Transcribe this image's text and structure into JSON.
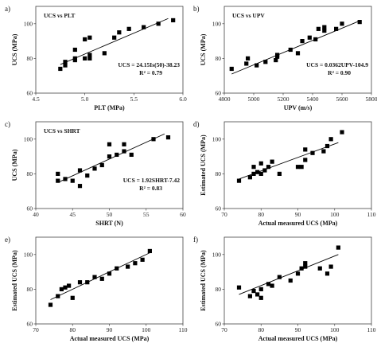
{
  "chart_data": [
    {
      "id": "a",
      "type": "scatter",
      "letter": "a)",
      "title": "UCS vs PLT",
      "equation": "UCS = 24.15Is(50)-38.23",
      "r2": "R² = 0.79",
      "xlabel": "PLT (MPa)",
      "ylabel": "UCS (MPa)",
      "xlim": [
        4.5,
        6.0
      ],
      "ylim": [
        60,
        110
      ],
      "xticks": [
        4.5,
        5.0,
        5.5,
        6.0
      ],
      "xtick_labels": [
        "4.5",
        "5.0",
        "5.5",
        "6.0"
      ],
      "yticks": [
        60,
        80,
        100
      ],
      "ytick_labels": [
        "60",
        "80",
        "100"
      ],
      "x": [
        4.75,
        4.8,
        4.8,
        4.9,
        4.9,
        4.9,
        5.0,
        5.0,
        5.05,
        5.05,
        5.05,
        5.2,
        5.3,
        5.35,
        5.45,
        5.6,
        5.75,
        5.9
      ],
      "y": [
        74,
        76,
        78,
        79,
        80,
        85,
        80,
        91,
        80,
        82,
        92,
        83,
        92,
        95,
        97,
        98,
        100,
        102
      ],
      "fit": [
        [
          4.75,
          76.5
        ],
        [
          5.85,
          103
        ]
      ]
    },
    {
      "id": "b",
      "type": "scatter",
      "letter": "b)",
      "title": "UCS vs UPV",
      "equation": "UCS = 0.0362UPV-104.9",
      "r2": "R² = 0.90",
      "xlabel": "UPV (m/s)",
      "ylabel": "UCS (MPa)",
      "xlim": [
        4800,
        5800
      ],
      "ylim": [
        60,
        110
      ],
      "xticks": [
        4800,
        5000,
        5200,
        5400,
        5600,
        5800
      ],
      "xtick_labels": [
        "4800",
        "5000",
        "5200",
        "5400",
        "5600",
        "5800"
      ],
      "yticks": [
        60,
        80,
        100
      ],
      "ytick_labels": [
        "60",
        "80",
        "100"
      ],
      "x": [
        4850,
        4950,
        4960,
        5020,
        5080,
        5150,
        5160,
        5160,
        5250,
        5300,
        5330,
        5380,
        5420,
        5440,
        5480,
        5480,
        5560,
        5600,
        5720
      ],
      "y": [
        74,
        77,
        80,
        76,
        78,
        79,
        81,
        82,
        85,
        83,
        90,
        92,
        91,
        97,
        96,
        98,
        97,
        100,
        101
      ],
      "fit": [
        [
          4850,
          71
        ],
        [
          5730,
          102
        ]
      ]
    },
    {
      "id": "c",
      "type": "scatter",
      "letter": "c)",
      "title": "UCS vs SHRT",
      "equation": "UCS = 1.92SHRT-7.42",
      "r2": "R² = 0.83",
      "xlabel": "SHRT (N)",
      "ylabel": "UCS (MPa)",
      "xlim": [
        40,
        60
      ],
      "ylim": [
        60,
        110
      ],
      "xticks": [
        40,
        45,
        50,
        55,
        60
      ],
      "xtick_labels": [
        "40",
        "45",
        "50",
        "55",
        "60"
      ],
      "yticks": [
        60,
        80,
        100
      ],
      "ytick_labels": [
        "60",
        "80",
        "100"
      ],
      "x": [
        43,
        43,
        44,
        45,
        46,
        46,
        47,
        48,
        49,
        50,
        50,
        51,
        52,
        52,
        53,
        56,
        58
      ],
      "y": [
        76,
        80,
        77,
        76,
        73,
        82,
        79,
        83,
        85,
        90,
        97,
        91,
        93,
        97,
        91,
        100,
        101
      ],
      "fit": [
        [
          43,
          75
        ],
        [
          57.5,
          103
        ]
      ]
    },
    {
      "id": "d",
      "type": "scatter",
      "letter": "d)",
      "title": "",
      "equation": "",
      "r2": "",
      "xlabel": "Actual measured UCS (MPa)",
      "ylabel": "Estimated UCS (MPa)",
      "xlim": [
        70,
        110
      ],
      "ylim": [
        60,
        110
      ],
      "xticks": [
        70,
        80,
        90,
        100,
        110
      ],
      "xtick_labels": [
        "70",
        "80",
        "90",
        "100",
        "110"
      ],
      "yticks": [
        60,
        80,
        100
      ],
      "ytick_labels": [
        "60",
        "80",
        "100"
      ],
      "x": [
        74,
        77,
        78,
        78,
        79,
        80,
        80,
        81,
        82,
        83,
        85,
        90,
        91,
        92,
        92,
        94,
        97,
        98,
        99,
        102
      ],
      "y": [
        76,
        78,
        80,
        84,
        81,
        86,
        80,
        82,
        84,
        87,
        80,
        84,
        84,
        94,
        88,
        92,
        93,
        96,
        100,
        104
      ],
      "fit": [
        [
          74,
          77
        ],
        [
          101,
          98
        ]
      ]
    },
    {
      "id": "e",
      "type": "scatter",
      "letter": "e)",
      "title": "",
      "equation": "",
      "r2": "",
      "xlabel": "Actual measured UCS (MPa)",
      "ylabel": "Estimated UCS (MPa)",
      "xlim": [
        70,
        110
      ],
      "ylim": [
        60,
        110
      ],
      "xticks": [
        70,
        80,
        90,
        100,
        110
      ],
      "xtick_labels": [
        "70",
        "80",
        "90",
        "100",
        "110"
      ],
      "yticks": [
        60,
        80,
        100
      ],
      "ytick_labels": [
        "60",
        "80",
        "100"
      ],
      "x": [
        74,
        76,
        77,
        78,
        79,
        80,
        82,
        84,
        86,
        88,
        90,
        92,
        95,
        97,
        99,
        101
      ],
      "y": [
        71,
        76,
        80,
        81,
        82,
        75,
        84,
        84,
        87,
        86,
        89,
        92,
        93,
        95,
        97,
        102
      ],
      "fit": [
        [
          74,
          74
        ],
        [
          101,
          101
        ]
      ]
    },
    {
      "id": "f",
      "type": "scatter",
      "letter": "f)",
      "title": "",
      "equation": "",
      "r2": "",
      "xlabel": "Actual measured UCS (MPa)",
      "ylabel": "Estimated UCS (MPa)",
      "xlim": [
        70,
        110
      ],
      "ylim": [
        60,
        110
      ],
      "xticks": [
        70,
        80,
        90,
        100,
        110
      ],
      "xtick_labels": [
        "70",
        "80",
        "90",
        "100",
        "110"
      ],
      "yticks": [
        60,
        80,
        100
      ],
      "ytick_labels": [
        "60",
        "80",
        "100"
      ],
      "x": [
        74,
        77,
        78,
        79,
        80,
        80,
        82,
        83,
        85,
        88,
        90,
        91,
        92,
        92,
        96,
        98,
        99,
        101
      ],
      "y": [
        81,
        76,
        79,
        77,
        80,
        75,
        83,
        82,
        87,
        85,
        89,
        92,
        93,
        95,
        92,
        89,
        93,
        104
      ],
      "fit": [
        [
          74,
          77
        ],
        [
          101,
          100
        ]
      ]
    }
  ]
}
